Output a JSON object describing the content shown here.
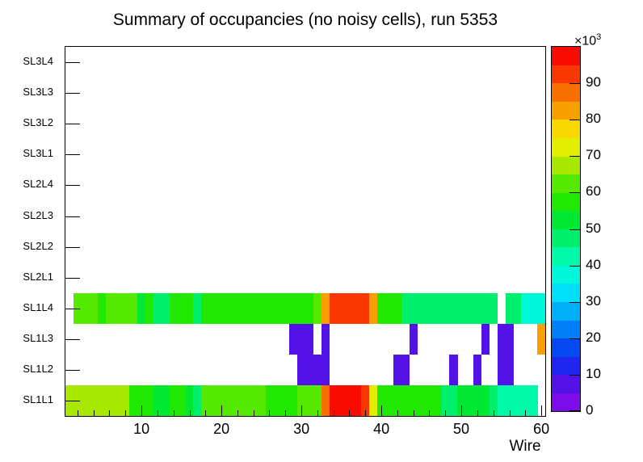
{
  "title": "Summary of occupancies (no noisy cells), run 5353",
  "chart_data": {
    "type": "heatmap",
    "title": "Summary of occupancies (no noisy cells), run 5353",
    "xlabel": "Wire",
    "x_axis": {
      "min": 0.5,
      "max": 60.5,
      "major_ticks": [
        10,
        20,
        30,
        40,
        50,
        60
      ],
      "minor_tick_step": 2
    },
    "y_rows_bottom_to_top": [
      "SL1L1",
      "SL1L2",
      "SL1L3",
      "SL1L4",
      "SL2L1",
      "SL2L2",
      "SL2L3",
      "SL2L4",
      "SL3L1",
      "SL3L2",
      "SL3L3",
      "SL3L4"
    ],
    "empty_rows": [
      "SL2L1",
      "SL2L2",
      "SL2L3",
      "SL2L4",
      "SL3L1",
      "SL3L2",
      "SL3L3",
      "SL3L4"
    ],
    "z_axis": {
      "min": 0,
      "max": 100,
      "tick_labels": [
        0,
        10,
        20,
        30,
        40,
        50,
        60,
        70,
        80,
        90
      ],
      "scale_base_label": "×10",
      "scale_exponent": "3",
      "unit": "counts × 10³"
    },
    "palette_band_size": 5,
    "palette": [
      "#7d0de8",
      "#5212e8",
      "#2125f0",
      "#0547f0",
      "#007ef8",
      "#00aff8",
      "#00def8",
      "#00f8da",
      "#00f8a8",
      "#00f06e",
      "#00e832",
      "#20e800",
      "#55e800",
      "#a8e800",
      "#e2ee00",
      "#f8d800",
      "#f8a000",
      "#f87000",
      "#f83800",
      "#f80b00"
    ],
    "values_unit": "10^3",
    "series": {
      "SL1L4": [
        null,
        62,
        62,
        62,
        55,
        62,
        62,
        62,
        62,
        52,
        55,
        45,
        45,
        55,
        55,
        55,
        45,
        55,
        55,
        55,
        57,
        57,
        57,
        57,
        57,
        57,
        55,
        55,
        55,
        55,
        55,
        62,
        82,
        92,
        92,
        92,
        92,
        92,
        82,
        57,
        55,
        55,
        45,
        45,
        45,
        45,
        45,
        45,
        45,
        45,
        45,
        45,
        45,
        45,
        null,
        45,
        45,
        37,
        37,
        37
      ],
      "SL1L3": [
        null,
        null,
        null,
        null,
        null,
        null,
        null,
        null,
        null,
        null,
        null,
        null,
        null,
        null,
        null,
        null,
        null,
        null,
        null,
        null,
        null,
        null,
        null,
        null,
        null,
        null,
        null,
        null,
        7,
        7,
        7,
        null,
        7,
        null,
        null,
        null,
        null,
        null,
        null,
        null,
        null,
        null,
        null,
        7,
        null,
        null,
        null,
        null,
        null,
        null,
        null,
        null,
        7,
        null,
        7,
        7,
        null,
        null,
        null,
        82
      ],
      "SL1L2": [
        null,
        null,
        null,
        null,
        null,
        null,
        null,
        null,
        null,
        null,
        null,
        null,
        null,
        null,
        null,
        null,
        null,
        null,
        null,
        null,
        null,
        null,
        null,
        null,
        null,
        null,
        null,
        null,
        null,
        7,
        7,
        7,
        7,
        null,
        null,
        null,
        null,
        null,
        null,
        null,
        null,
        7,
        7,
        null,
        null,
        null,
        null,
        null,
        7,
        null,
        null,
        7,
        null,
        null,
        7,
        7,
        null,
        null,
        null,
        null
      ],
      "SL1L1": [
        67,
        67,
        67,
        67,
        67,
        67,
        67,
        67,
        57,
        57,
        57,
        52,
        52,
        57,
        57,
        52,
        47,
        62,
        62,
        62,
        62,
        62,
        62,
        62,
        62,
        55,
        55,
        55,
        55,
        62,
        62,
        62,
        88,
        97,
        97,
        97,
        97,
        92,
        72,
        55,
        57,
        57,
        57,
        55,
        55,
        55,
        55,
        45,
        45,
        52,
        52,
        52,
        52,
        47,
        44,
        44,
        44,
        44,
        44,
        null
      ]
    }
  }
}
